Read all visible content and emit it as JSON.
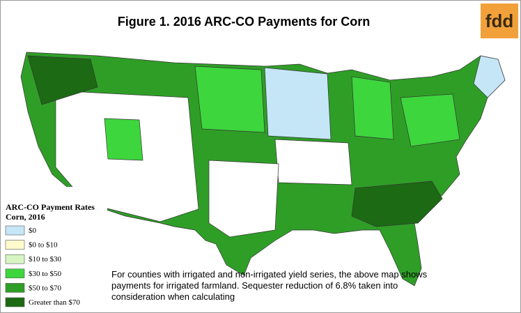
{
  "header": {
    "title": "Figure 1.  2016 ARC-CO Payments for Corn",
    "logo": "fdd"
  },
  "legend": {
    "title": "ARC-CO Payment Rates",
    "subtitle": "Corn, 2016",
    "items": [
      {
        "label": "$0",
        "color": "#c5e6f7"
      },
      {
        "label": "$0 to $10",
        "color": "#fffbcc"
      },
      {
        "label": "$10 to $30",
        "color": "#d6f5c2"
      },
      {
        "label": "$30 to $50",
        "color": "#3dd63d"
      },
      {
        "label": "$50 to $70",
        "color": "#2f9e27"
      },
      {
        "label": "Greater than $70",
        "color": "#1c6a14"
      }
    ]
  },
  "note": {
    "lines": [
      "For counties with irrigated and non-irrigated yield series, the above map shows",
      "payments for irrigated farmland. Sequester reduction of 6.8% taken into",
      "consideration when calculating"
    ]
  }
}
